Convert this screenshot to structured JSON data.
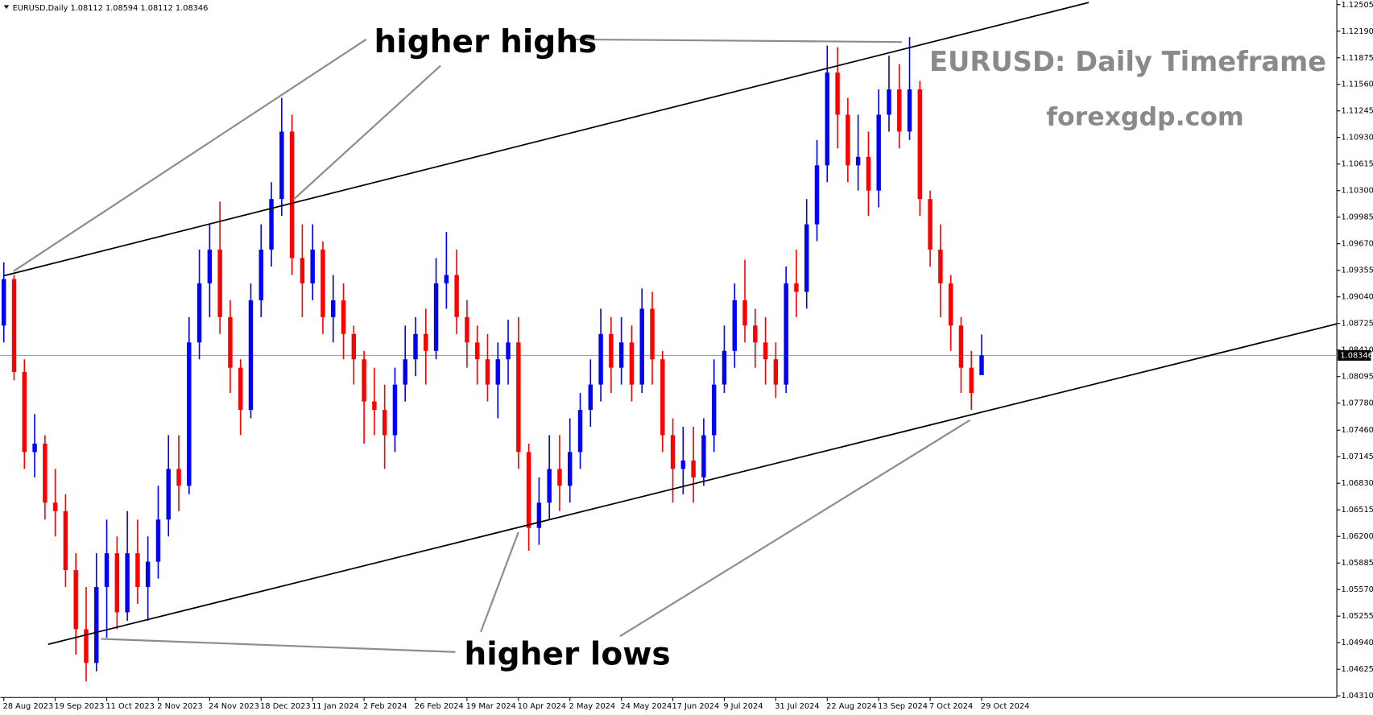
{
  "chart_data": {
    "type": "candlestick",
    "header": "EURUSD,Daily  1.08112 1.08594 1.08112 1.08346",
    "up_color": "#0000ff",
    "down_color": "#ff0000",
    "categories": [
      "28 Aug 2023",
      null,
      null,
      null,
      null,
      "19 Sep 2023",
      null,
      null,
      null,
      null,
      "11 Oct 2023",
      null,
      null,
      null,
      null,
      "2 Nov 2023",
      null,
      null,
      null,
      null,
      "24 Nov 2023",
      null,
      null,
      null,
      null,
      "18 Dec 2023",
      null,
      null,
      null,
      null,
      "11 Jan 2024",
      null,
      null,
      null,
      null,
      "2 Feb 2024",
      null,
      null,
      null,
      null,
      "26 Feb 2024",
      null,
      null,
      null,
      null,
      "19 Mar 2024",
      null,
      null,
      null,
      null,
      "10 Apr 2024",
      null,
      null,
      null,
      null,
      "2 May 2024",
      null,
      null,
      null,
      null,
      "24 May 2024",
      null,
      null,
      null,
      null,
      "17 Jun 2024",
      null,
      null,
      null,
      null,
      "9 Jul 2024",
      null,
      null,
      null,
      null,
      "31 Jul 2024",
      null,
      null,
      null,
      null,
      "22 Aug 2024",
      null,
      null,
      null,
      null,
      "13 Sep 2024",
      null,
      null,
      null,
      null,
      "7 Oct 2024",
      null,
      null,
      null,
      null,
      "29 Oct 2024"
    ],
    "open": [
      1.087,
      1.0925,
      1.0815,
      1.072,
      1.073,
      1.066,
      1.065,
      1.058,
      1.051,
      1.047,
      1.056,
      1.06,
      1.053,
      1.06,
      1.056,
      1.059,
      1.064,
      1.07,
      1.068,
      1.085,
      1.092,
      1.096,
      1.088,
      1.082,
      1.077,
      1.09,
      1.096,
      1.102,
      1.11,
      1.095,
      1.092,
      1.096,
      1.088,
      1.09,
      1.086,
      1.083,
      1.078,
      1.077,
      1.074,
      1.08,
      1.083,
      1.086,
      1.084,
      1.092,
      1.093,
      1.088,
      1.085,
      1.083,
      1.08,
      1.083,
      1.085,
      1.072,
      1.063,
      1.066,
      1.07,
      1.068,
      1.072,
      1.077,
      1.08,
      1.086,
      1.082,
      1.085,
      1.08,
      1.089,
      1.083,
      1.074,
      1.07,
      1.071,
      1.069,
      1.074,
      1.08,
      1.084,
      1.09,
      1.087,
      1.085,
      1.083,
      1.08,
      1.092,
      1.091,
      1.099,
      1.106,
      1.117,
      1.112,
      1.106,
      1.107,
      1.103,
      1.112,
      1.115,
      1.11,
      1.115,
      1.102,
      1.096,
      1.092,
      1.087,
      1.082,
      1.08112
    ],
    "high": [
      1.0945,
      1.093,
      1.083,
      1.0765,
      1.074,
      1.07,
      1.067,
      1.06,
      1.056,
      1.06,
      1.064,
      1.062,
      1.065,
      1.064,
      1.062,
      1.068,
      1.074,
      1.074,
      1.088,
      1.096,
      1.099,
      1.1017,
      1.09,
      1.083,
      1.092,
      1.099,
      1.104,
      1.114,
      1.112,
      1.099,
      1.099,
      1.097,
      1.093,
      1.092,
      1.087,
      1.084,
      1.082,
      1.08,
      1.082,
      1.087,
      1.088,
      1.089,
      1.095,
      1.0981,
      1.096,
      1.09,
      1.087,
      1.086,
      1.085,
      1.0877,
      1.088,
      1.073,
      1.069,
      1.074,
      1.074,
      1.076,
      1.079,
      1.083,
      1.089,
      1.088,
      1.088,
      1.087,
      1.0914,
      1.091,
      1.084,
      1.076,
      1.075,
      1.075,
      1.076,
      1.083,
      1.087,
      1.092,
      1.0948,
      1.089,
      1.088,
      1.085,
      1.094,
      1.096,
      1.102,
      1.109,
      1.1202,
      1.12,
      1.114,
      1.112,
      1.11,
      1.115,
      1.119,
      1.118,
      1.1212,
      1.116,
      1.103,
      1.099,
      1.093,
      1.088,
      1.084,
      1.08594
    ],
    "low": [
      1.085,
      1.0805,
      1.07,
      1.069,
      1.064,
      1.062,
      1.056,
      1.048,
      1.0448,
      1.046,
      1.05,
      1.051,
      1.052,
      1.054,
      1.052,
      1.057,
      1.062,
      1.065,
      1.067,
      1.083,
      1.088,
      1.086,
      1.079,
      1.074,
      1.076,
      1.088,
      1.094,
      1.1,
      1.093,
      1.088,
      1.09,
      1.086,
      1.085,
      1.083,
      1.08,
      1.073,
      1.074,
      1.07,
      1.072,
      1.078,
      1.081,
      1.08,
      1.083,
      1.089,
      1.086,
      1.082,
      1.08,
      1.078,
      1.076,
      1.08,
      1.07,
      1.0603,
      1.061,
      1.064,
      1.065,
      1.066,
      1.07,
      1.075,
      1.078,
      1.079,
      1.08,
      1.078,
      1.079,
      1.08,
      1.072,
      1.066,
      1.067,
      1.066,
      1.068,
      1.072,
      1.079,
      1.082,
      1.085,
      1.082,
      1.08,
      1.0784,
      1.079,
      1.088,
      1.089,
      1.097,
      1.104,
      1.108,
      1.104,
      1.103,
      1.1,
      1.101,
      1.11,
      1.108,
      1.109,
      1.1,
      1.094,
      1.088,
      1.084,
      1.079,
      1.077,
      1.08112
    ],
    "close": [
      1.0925,
      1.0815,
      1.072,
      1.073,
      1.066,
      1.065,
      1.058,
      1.051,
      1.047,
      1.056,
      1.06,
      1.053,
      1.06,
      1.056,
      1.059,
      1.064,
      1.07,
      1.068,
      1.085,
      1.092,
      1.096,
      1.088,
      1.082,
      1.077,
      1.09,
      1.096,
      1.102,
      1.11,
      1.095,
      1.092,
      1.096,
      1.088,
      1.09,
      1.086,
      1.083,
      1.078,
      1.077,
      1.074,
      1.08,
      1.083,
      1.086,
      1.084,
      1.092,
      1.093,
      1.088,
      1.085,
      1.083,
      1.08,
      1.083,
      1.085,
      1.072,
      1.063,
      1.066,
      1.07,
      1.068,
      1.072,
      1.077,
      1.08,
      1.086,
      1.082,
      1.085,
      1.08,
      1.089,
      1.083,
      1.074,
      1.07,
      1.071,
      1.069,
      1.074,
      1.08,
      1.084,
      1.09,
      1.087,
      1.085,
      1.083,
      1.08,
      1.092,
      1.091,
      1.099,
      1.106,
      1.117,
      1.112,
      1.106,
      1.107,
      1.103,
      1.112,
      1.115,
      1.11,
      1.115,
      1.102,
      1.096,
      1.092,
      1.087,
      1.082,
      1.079,
      1.08346
    ],
    "ylim": [
      1.0429,
      1.1256
    ],
    "yticks": [
      {
        "value": 1.0431,
        "label": "1.04310"
      },
      {
        "value": 1.04625,
        "label": "1.04625"
      },
      {
        "value": 1.0494,
        "label": "1.04940"
      },
      {
        "value": 1.05255,
        "label": "1.05255"
      },
      {
        "value": 1.0557,
        "label": "1.05570"
      },
      {
        "value": 1.05885,
        "label": "1.05885"
      },
      {
        "value": 1.062,
        "label": "1.06200"
      },
      {
        "value": 1.06515,
        "label": "1.06515"
      },
      {
        "value": 1.0683,
        "label": "1.06830"
      },
      {
        "value": 1.07145,
        "label": "1.07145"
      },
      {
        "value": 1.0746,
        "label": "1.07460"
      },
      {
        "value": 1.0778,
        "label": "1.07780"
      },
      {
        "value": 1.08095,
        "label": "1.08095"
      },
      {
        "value": 1.0841,
        "label": "1.08410"
      },
      {
        "value": 1.08725,
        "label": "1.08725"
      },
      {
        "value": 1.0904,
        "label": "1.09040"
      },
      {
        "value": 1.09355,
        "label": "1.09355"
      },
      {
        "value": 1.0967,
        "label": "1.09670"
      },
      {
        "value": 1.09985,
        "label": "1.09985"
      },
      {
        "value": 1.103,
        "label": "1.10300"
      },
      {
        "value": 1.10615,
        "label": "1.10615"
      },
      {
        "value": 1.1093,
        "label": "1.10930"
      },
      {
        "value": 1.11245,
        "label": "1.11245"
      },
      {
        "value": 1.1156,
        "label": "1.11560"
      },
      {
        "value": 1.11875,
        "label": "1.11875"
      },
      {
        "value": 1.1219,
        "label": "1.12190"
      },
      {
        "value": 1.12505,
        "label": "1.12505"
      }
    ],
    "last_price": {
      "value": 1.08346,
      "label": "1.08346"
    },
    "trendlines": [
      {
        "x": [
          0,
          105.4
        ],
        "y": [
          1.0929,
          1.1253
        ]
      },
      {
        "x": [
          4.3,
          129.5
        ],
        "y": [
          1.0492,
          1.0872
        ]
      }
    ],
    "annotations": [
      "higher highs",
      "higher lows",
      "EURUSD: Daily Timeframe",
      "forexgdp.com"
    ]
  }
}
